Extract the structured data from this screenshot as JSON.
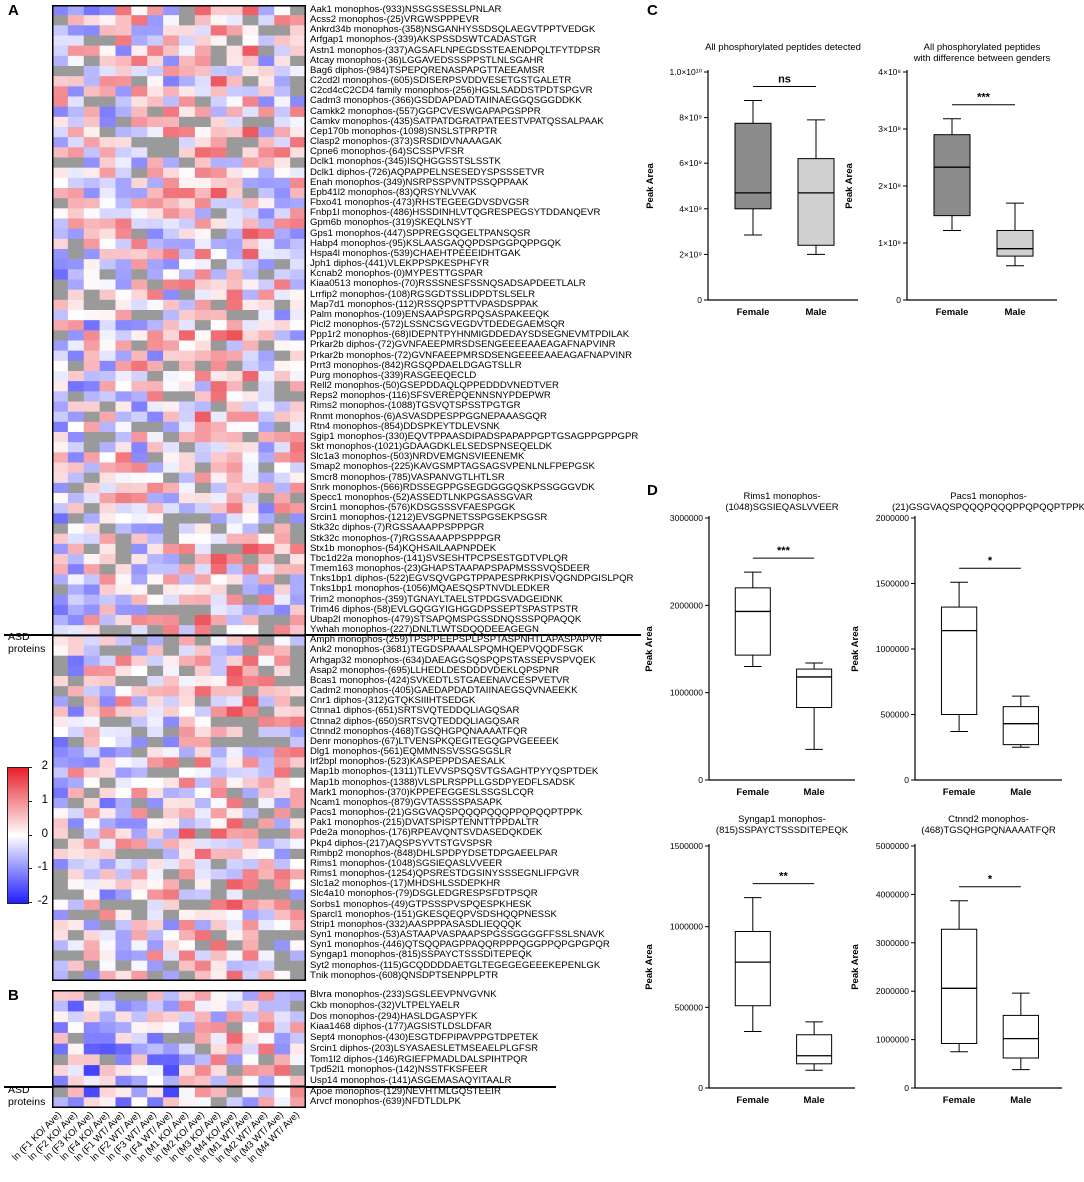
{
  "panels": {
    "A": "A",
    "B": "B",
    "C": "C",
    "D": "D"
  },
  "heatmap_A": {
    "rows": [
      "Aak1 monophos-(933)NSSGSSESSLPNLAR",
      "Acss2 monophos-(25)VRGWSPPPEVR",
      "Ankrd34b monophos-(358)NSGANHYSSDSQLAEGVTPPTVEDGK",
      "Arfgap1 monophos-(339)AKSPSSDSWTCADASTGR",
      "Astn1 monophos-(337)AGSAFLNPEGDSSTEAENDPQLTFYTDPSR",
      "Atcay monophos-(36)LGGAVEDSSSPPSTLNLSGAHR",
      "Bag6 diphos-(984)TSPEPQRENASPAPGTTAEEAMSR",
      "C2cd2l monophos-(605)SDISERPSVDDVESETGSTGALETR",
      "C2cd4cC2CD4 family monophos-(256)HGSLSADDSTPDTSPGVR",
      "Cadm3 monophos-(366)GSDDAPDADTAIINAEGGQSGGDDKK",
      "Camkk2 monophos-(557)GGPCVESWGAPAPGSPPR",
      "Camkv monophos-(435)SATPATDGRATPATEESTVPATQSSALPAAK",
      "Cep170b monophos-(1098)SNSLSTPRPTR",
      "Clasp2 monophos-(373)SRSDIDVNAAAGAK",
      "Cpne6 monophos-(64)SCSSPVFSR",
      "Dclk1 monophos-(345)ISQHGGSSTSLSSTK",
      "Dclk1 diphos-(726)AQPAPPELNSESEDYSPSSSETVR",
      "Enah monophos-(349)NSRPSSPVNTPSSQPPAAK",
      "Epb41l2 monophos-(83)QRSYNLVVAK",
      "Fbxo41 monophos-(473)RHSTEGEEGDVSDVGSR",
      "Fnbp1l monophos-(486)HSSDINHLVTQGRESPEGSYTDDANQEVR",
      "Gpm6b monophos-(319)SKEQLNSYT",
      "Gps1 monophos-(447)SPPREGSQGELTPANSQSR",
      "Habp4 monophos-(95)KSLAASGAQQPDSPGGPQPPGQK",
      "Hspa4l monophos-(539)CHAEHTPEEEIDHTGAK",
      "Jph1 diphos-(441)VLEKPPSPKESPHFYR",
      "Kcnab2 monophos-(0)MYPESTTGSPAR",
      "Kiaa0513 monophos-(70)RSSSNESFSSNQSADSAPDEETLALR",
      "Lrrfip2 monophos-(108)RGSGDTSSLIDPDTSLSELR",
      "Map7d1 monophos-(112)RSSQPSPTTVPASDSPPAK",
      "Palm monophos-(109)ENSAAPSPGRPQSASPAKEEQK",
      "Picl2 monophos-(572)LSSNCSGVEGDVTDEDEGAEMSQR",
      "Ppp1r2 monophos-(68)IDEPNTPYHNMIGDDEDAYSDSEGNEVMTPDILAK",
      "Prkar2b diphos-(72)GVNFAEEPMRSDSENGEEEEAAEAGAFNAPVINR",
      "Prkar2b monophos-(72)GVNFAEEPMRSDSENGEEEEAAEAGAFNAPVINR",
      "Prrt3 monophos-(842)RGSQPDAELDGAGTSLLR",
      "Purg monophos-(339)RASGEEQECLD",
      "Rell2 monophos-(50)GSEPDDAQLQPPEDDDVNEDTVER",
      "Reps2 monophos-(116)SFSVEREPQENNSNYPDEPWR",
      "Rims2 monophos-(1088)TGSVQTSPSSTPGTGR",
      "Rnmt monophos-(6)ASVASDPESPPGGNEPAAASGQR",
      "Rtn4 monophos-(854)DDSPKEYTDLEVSNK",
      "Sgip1 monophos-(330)EQVTPPAASDIPADSPAPAPPGPTGSAGPPGPPGPR",
      "Skt monophos-(1021)GDAAGDKLELSEDSPNSEQELDK",
      "Slc1a3 monophos-(503)NRDVEMGNSVIEENEMK",
      "Smap2 monophos-(225)KAVGSMPTAGSAGSVPENLNLFPEPGSK",
      "Smcr8 monophos-(785)VASPANVGTLHTLSR",
      "Snrk monophos-(566)RDSSEGPPGSEGDGGGQSKPSSGGGVDK",
      "Specc1 monophos-(52)ASSEDTLNKPGSASSGVAR",
      "Srcin1 monophos-(576)KDSGSSSVFAESPGGK",
      "Srcin1 monophos-(1212)EVSGPNETSSPGSEKPSGSR",
      "Stk32c diphos-(7)RGSSAAAPPSPPPGR",
      "Stk32c monophos-(7)RGSSAAAPPSPPPGR",
      "Stx1b monophos-(54)KQHSAILAAPNPDEK",
      "Tbc1d22a monophos-(141)SVSESHTPCPSESTGDTVPLQR",
      "Tmem163 monophos-(23)GHAPSTAAPAPSPAPMSSSVQSDEER",
      "Tnks1bp1 diphos-(522)EGVSQVGPGTPPAPESPRKPISVQGNDPGISLPQR",
      "Tnks1bp1 monophos-(1056)MQAESQSPTNVDLEDKER",
      "Trim2 monophos-(359)TGNAYLTAELSTPDGSVADGEIDNK",
      "Trim46 diphos-(58)EVLGQGGYIGHGGDPSSEPTSPASTPSTR",
      "Ubap2l monophos-(479)STSAPQMSPGSSDNQSSSPQPAQQK",
      "Ywhah monophos-(227)DNLTLWTSDQQDEEAGEGN",
      "Amph monophos-(259)TPSPPEEPSPLPSPTASPNHTLAPASPAPVR",
      "Ank2 monophos-(3681)TEGDSPAAALSPQMHQEPVQQDFSGK",
      "Arhgap32 monophos-(634)DAEAGGSQSPQPSTASSEPVSPVQEK",
      "Asap2 monophos-(695)LLHEDLDESDDDVDEKLQPSPNR",
      "Bcas1 monophos-(424)SVKEDTLSTGAEENAVCESPVETVR",
      "Cadm2 monophos-(405)GAEDAPDADTAIINAEGSQVNAEEKK",
      "Cnr1 diphos-(312)GTQKSIIIHTSEDGK",
      "Ctnna1 diphos-(651)SRTSVQTEDDQLIAGQSAR",
      "Ctnna2 diphos-(650)SRTSVQTEDDQLIAGQSAR",
      "Ctnnd2 monophos-(468)TGSQHGPQNAAAATFQR",
      "Denr monophos-(67)LTVENSPKQEGITEGQGPVGEEEEK",
      "Dlg1 monophos-(561)EQMMNSSVSSGSGSLR",
      "Irf2bpl monophos-(523)KASPEPPDSAESALK",
      "Map1b monophos-(1311)TLEVVSPSQSVTGSAGHTPYYQSPTDEK",
      "Map1b monophos-(1388)VLSPLRSPPLLGSDPYEDFLSADSK",
      "Mark1 monophos-(370)KPPEFEGGESLSSGSLCQR",
      "Ncam1 monophos-(879)GVTASSSSPASAPK",
      "Pacs1 monophos-(21)GSGVAQSPQQQPQQQPPQPQQPTPPK",
      "Pak1 monophos-(215)DVATSPISPTENNTTPPDALTR",
      "Pde2a monophos-(176)RPEAVQNTSVDASEDQKDEK",
      "Pkp4 diphos-(217)AQSPSYVTSTGVSPSR",
      "Rimbp2 monophos-(848)DHLSPDPYDSETDPGAEELPAR",
      "Rims1 monophos-(1048)SGSIEQASLVVEER",
      "Rims1 monophos-(1254)QPSRESTDGSINYSSSEGNLIFPGVR",
      "Slc1a2 monophos-(17)MHDSHLSSDEPKHR",
      "Slc4a10 monophos-(79)DSGLEDGRESPSFDTPSQR",
      "Sorbs1 monophos-(49)GTPSSSPVSPQESPKHESK",
      "Sparcl1 monophos-(151)GKESQEQPVSDSHQQPNESSK",
      "Strip1 monophos-(332)AASPPPASASDLIEQQQK",
      "Syn1 monophos-(53)ASTAAPVASPAAPSPGSSGGGGFFSSLSNAVK",
      "Syn1 monophos-(446)QTSQQPAGPPAQQRPPPQGGPPQPGPGPQR",
      "Syngap1 monophos-(815)SSPAYCTSSSDITEPEQK",
      "Syt2 monophos-(115)GCQDDDDAETGLTEGEGEGEEEKEPENLGK",
      "Tnik monophos-(608)QNSDPTSENPPLPTR"
    ],
    "asd_label": "ASD proteins"
  },
  "heatmap_B": {
    "rows": [
      "Blvra monophos-(233)SGSLEEVPNVGVNK",
      "Ckb monophos-(32)VLTPELYAELR",
      "Dos monophos-(294)HASLDGASPYFK",
      "Kiaa1468 diphos-(177)AGSISTLDSLDFAR",
      "Sept4 monophos-(430)ESGTDFPIPAVPPGTDPETEK",
      "Srcin1 diphos-(203)LSYASAESLETMSEAELPLGFSR",
      "Tom1l2 diphos-(146)RGIEFPMADLDALSPIHTPQR",
      "Tpd52l1 monophos-(142)NSSTFKSFEER",
      "Usp14 monophos-(141)ASGEMASAQYITAALR",
      "Apoe monophos-(129)NEVHTMLGQSTEEIR",
      "Arvcf monophos-(639)NFDTLDLPK"
    ],
    "asd_label": "ASD proteins"
  },
  "columns": [
    "ln (F1 KO/ Ave)",
    "ln (F2 KO/ Ave)",
    "ln (F3 KO/ Ave)",
    "ln (F4 KO/ Ave)",
    "ln (F1 WT/ Ave)",
    "ln (F2 WT/ Ave)",
    "ln (F3 WT/ Ave)",
    "ln (F4 WT/ Ave)",
    "ln (M1 KO/ Ave)",
    "ln (M2 KO/ Ave)",
    "ln (M3 KO/ Ave)",
    "ln (M4 KO/ Ave)",
    "ln (M1 WT/ Ave)",
    "ln (M2 WT/ Ave)",
    "ln (M3 WT/ Ave)",
    "ln (M4 WT/ Ave)"
  ],
  "colorbar": {
    "ticks": [
      "2",
      "1",
      "0",
      "-1",
      "-2"
    ],
    "high": "#e8202a",
    "mid": "#ffffff",
    "low": "#1f1fff",
    "missing": "#9a9a9a"
  },
  "chart_data": [
    {
      "type": "box",
      "title": "All phosphorylated peptides detected",
      "ylabel": "Peak Area",
      "categories": [
        "Female",
        "Male"
      ],
      "yticks": [
        "0",
        "2×10⁹",
        "4×10⁹",
        "6×10⁹",
        "8×10⁹",
        "1.0×10¹⁰"
      ],
      "ylim": [
        0,
        10000000000
      ],
      "boxes": [
        {
          "min": 2850000000,
          "q1": 4000000000,
          "median": 4700000000,
          "q3": 7750000000,
          "max": 8750000000,
          "fill": "#8c8c8c"
        },
        {
          "min": 2000000000,
          "q1": 2400000000,
          "median": 4700000000,
          "q3": 6200000000,
          "max": 7900000000,
          "fill": "#d0d0d0"
        }
      ],
      "significance": "ns"
    },
    {
      "type": "box",
      "title": "All phosphorylated peptides\nwith difference between genders",
      "ylabel": "Peak Area",
      "categories": [
        "Female",
        "Male"
      ],
      "yticks": [
        "0",
        "1×10⁸",
        "2×10⁸",
        "3×10⁸",
        "4×10⁸"
      ],
      "ylim": [
        0,
        400000000
      ],
      "boxes": [
        {
          "min": 122000000,
          "q1": 148000000,
          "median": 233000000,
          "q3": 290000000,
          "max": 318000000,
          "fill": "#8c8c8c"
        },
        {
          "min": 60000000,
          "q1": 77000000,
          "median": 90000000,
          "q3": 122000000,
          "max": 170000000,
          "fill": "#d0d0d0"
        }
      ],
      "significance": "***"
    },
    {
      "type": "box",
      "title": "Rims1 monophos-\n(1048)SGSIEQASLVVEER",
      "ylabel": "Peak Area",
      "categories": [
        "Female",
        "Male"
      ],
      "yticks": [
        "0",
        "1000000",
        "2000000",
        "3000000"
      ],
      "ylim": [
        0,
        3000000
      ],
      "boxes": [
        {
          "min": 1300000,
          "q1": 1430000,
          "median": 1930000,
          "q3": 2200000,
          "max": 2380000,
          "fill": "#ffffff"
        },
        {
          "min": 350000,
          "q1": 830000,
          "median": 1180000,
          "q3": 1270000,
          "max": 1340000,
          "fill": "#ffffff"
        }
      ],
      "significance": "***"
    },
    {
      "type": "box",
      "title": "Pacs1 monophos-\n(21)GSGVAQSPQQQPQQQPPQPQQPTPPK",
      "ylabel": "Peak Area",
      "categories": [
        "Female",
        "Male"
      ],
      "yticks": [
        "0",
        "500000",
        "1000000",
        "1500000",
        "2000000"
      ],
      "ylim": [
        0,
        2000000
      ],
      "boxes": [
        {
          "min": 370000,
          "q1": 500000,
          "median": 1140000,
          "q3": 1320000,
          "max": 1510000,
          "fill": "#ffffff"
        },
        {
          "min": 250000,
          "q1": 270000,
          "median": 430000,
          "q3": 560000,
          "max": 640000,
          "fill": "#ffffff"
        }
      ],
      "significance": "*"
    },
    {
      "type": "box",
      "title": "Syngap1 monophos-\n(815)SSPAYCTSSSDITEPEQK",
      "ylabel": "Peak Area",
      "categories": [
        "Female",
        "Male"
      ],
      "yticks": [
        "0",
        "500000",
        "1000000",
        "1500000"
      ],
      "ylim": [
        0,
        1500000
      ],
      "boxes": [
        {
          "min": 350000,
          "q1": 510000,
          "median": 780000,
          "q3": 970000,
          "max": 1180000,
          "fill": "#ffffff"
        },
        {
          "min": 110000,
          "q1": 150000,
          "median": 200000,
          "q3": 330000,
          "max": 410000,
          "fill": "#ffffff"
        }
      ],
      "significance": "**"
    },
    {
      "type": "box",
      "title": "Ctnnd2 monophos-\n(468)TGSQHGPQNAAAATFQR",
      "ylabel": "Peak Area",
      "categories": [
        "Female",
        "Male"
      ],
      "yticks": [
        "0",
        "1000000",
        "2000000",
        "3000000",
        "4000000",
        "5000000"
      ],
      "ylim": [
        0,
        5000000
      ],
      "boxes": [
        {
          "min": 750000,
          "q1": 920000,
          "median": 2060000,
          "q3": 3280000,
          "max": 3870000,
          "fill": "#ffffff"
        },
        {
          "min": 380000,
          "q1": 620000,
          "median": 1020000,
          "q3": 1500000,
          "max": 1960000,
          "fill": "#ffffff"
        }
      ],
      "significance": "*"
    }
  ]
}
